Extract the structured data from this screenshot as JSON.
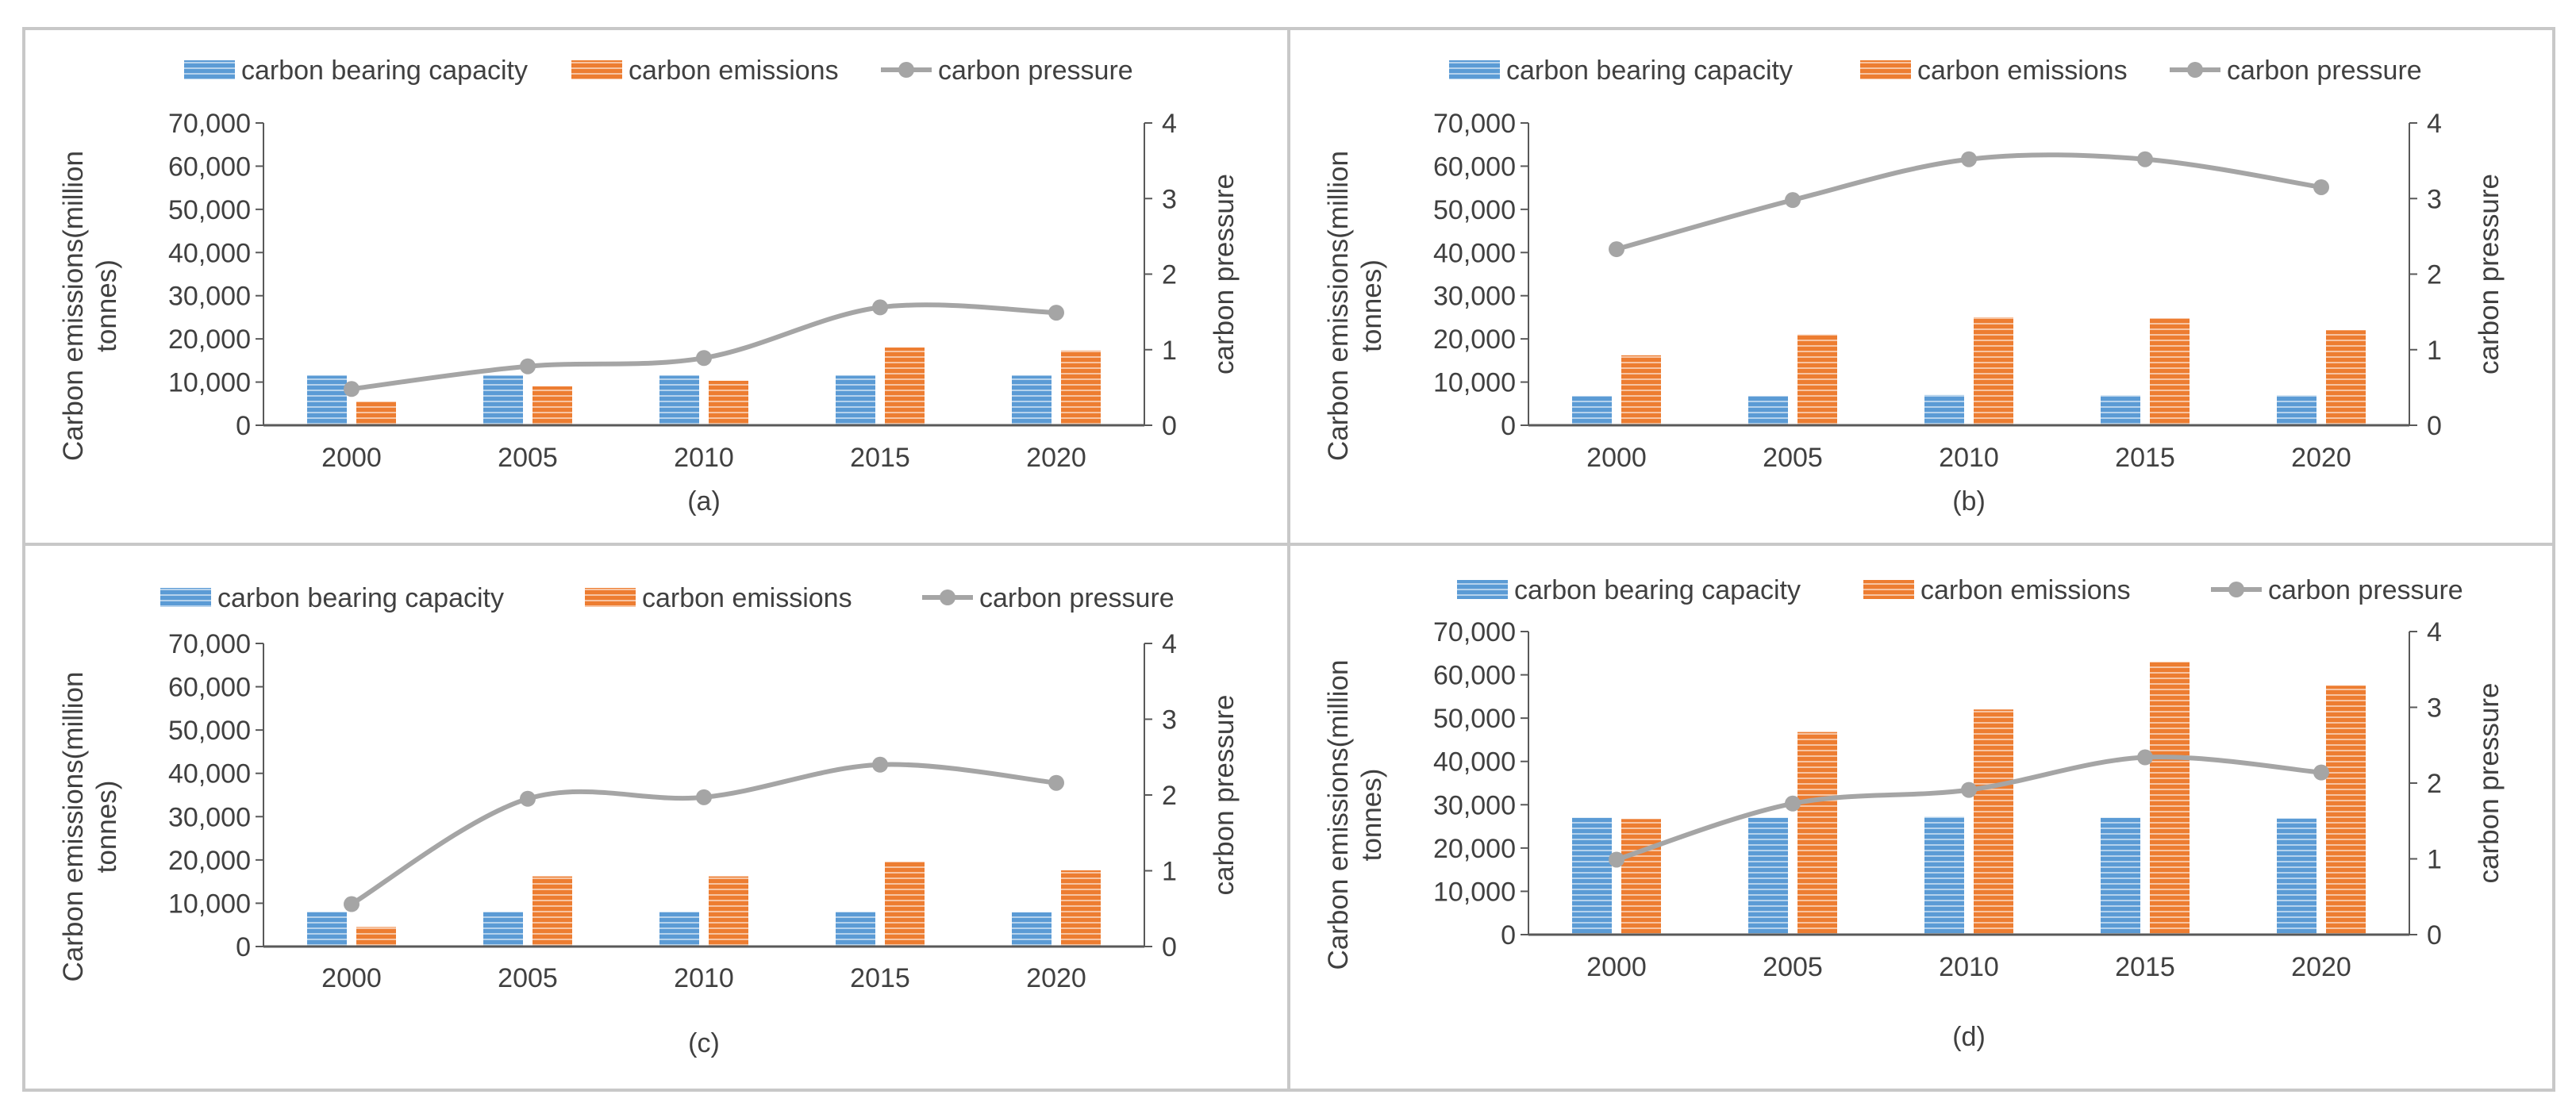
{
  "colors": {
    "capacity": "#5b9bd5",
    "emissions": "#ed7d31",
    "pressure": "#a5a5a5",
    "axis": "#595959",
    "text": "#404040",
    "frame": "#c8c8c8"
  },
  "chart_data": [
    {
      "type": "bar",
      "caption": "(a)",
      "categories": [
        "2000",
        "2005",
        "2010",
        "2015",
        "2020"
      ],
      "series": [
        {
          "name": "carbon bearing capacity",
          "kind": "bar",
          "axis": "left",
          "values": [
            11500,
            11500,
            11500,
            11500,
            11500
          ]
        },
        {
          "name": "carbon emissions",
          "kind": "bar",
          "axis": "left",
          "values": [
            5500,
            9000,
            10300,
            18000,
            17300
          ]
        },
        {
          "name": "carbon pressure",
          "kind": "line",
          "axis": "right",
          "values": [
            0.48,
            0.78,
            0.89,
            1.56,
            1.49
          ]
        }
      ],
      "ylabel": "Carbon emissions(million tonnes)",
      "ylabel_lines": [
        "Carbon emissions(million",
        "tonnes)"
      ],
      "y2label": "carbon pressure",
      "ylim": [
        0,
        70000
      ],
      "y2lim": [
        0,
        4
      ],
      "yticks": [
        0,
        10000,
        20000,
        30000,
        40000,
        50000,
        60000,
        70000
      ],
      "ytick_labels": [
        "0",
        "10,000",
        "20,000",
        "30,000",
        "40,000",
        "50,000",
        "60,000",
        "70,000"
      ],
      "y2ticks": [
        0,
        1,
        2,
        3,
        4
      ],
      "y2tick_labels": [
        "0",
        "1",
        "2",
        "3",
        "4"
      ],
      "legend": "top",
      "grid": false
    },
    {
      "type": "bar",
      "caption": "(b)",
      "categories": [
        "2000",
        "2005",
        "2010",
        "2015",
        "2020"
      ],
      "series": [
        {
          "name": "carbon bearing capacity",
          "kind": "bar",
          "axis": "left",
          "values": [
            6800,
            6800,
            7000,
            6900,
            6900
          ]
        },
        {
          "name": "carbon emissions",
          "kind": "bar",
          "axis": "left",
          "values": [
            16200,
            21000,
            25000,
            24800,
            22000
          ]
        },
        {
          "name": "carbon pressure",
          "kind": "line",
          "axis": "right",
          "values": [
            2.33,
            2.98,
            3.52,
            3.52,
            3.15
          ]
        }
      ],
      "ylabel": "Carbon emissions(million tonnes)",
      "ylabel_lines": [
        "Carbon emissions(million",
        "tonnes)"
      ],
      "y2label": "carbon pressure",
      "ylim": [
        0,
        70000
      ],
      "y2lim": [
        0,
        4
      ],
      "yticks": [
        0,
        10000,
        20000,
        30000,
        40000,
        50000,
        60000,
        70000
      ],
      "ytick_labels": [
        "0",
        "10,000",
        "20,000",
        "30,000",
        "40,000",
        "50,000",
        "60,000",
        "70,000"
      ],
      "y2ticks": [
        0,
        1,
        2,
        3,
        4
      ],
      "y2tick_labels": [
        "0",
        "1",
        "2",
        "3",
        "4"
      ],
      "legend": "top",
      "grid": false
    },
    {
      "type": "bar",
      "caption": "(c)",
      "categories": [
        "2000",
        "2005",
        "2010",
        "2015",
        "2020"
      ],
      "series": [
        {
          "name": "carbon bearing capacity",
          "kind": "bar",
          "axis": "left",
          "values": [
            8000,
            8000,
            8000,
            8000,
            7900
          ]
        },
        {
          "name": "carbon emissions",
          "kind": "bar",
          "axis": "left",
          "values": [
            4500,
            16200,
            16200,
            19600,
            17600
          ]
        },
        {
          "name": "carbon pressure",
          "kind": "line",
          "axis": "right",
          "values": [
            0.56,
            1.95,
            1.97,
            2.4,
            2.16
          ]
        }
      ],
      "ylabel": "Carbon emissions(million tonnes)",
      "ylabel_lines": [
        "Carbon emissions(million",
        "tonnes)"
      ],
      "y2label": "carbon pressure",
      "ylim": [
        0,
        70000
      ],
      "y2lim": [
        0,
        4
      ],
      "yticks": [
        0,
        10000,
        20000,
        30000,
        40000,
        50000,
        60000,
        70000
      ],
      "ytick_labels": [
        "0",
        "10,000",
        "20,000",
        "30,000",
        "40,000",
        "50,000",
        "60,000",
        "70,000"
      ],
      "y2ticks": [
        0,
        1,
        2,
        3,
        4
      ],
      "y2tick_labels": [
        "0",
        "1",
        "2",
        "3",
        "4"
      ],
      "legend": "top",
      "grid": false
    },
    {
      "type": "bar",
      "caption": "(d)",
      "categories": [
        "2000",
        "2005",
        "2010",
        "2015",
        "2020"
      ],
      "series": [
        {
          "name": "carbon bearing capacity",
          "kind": "bar",
          "axis": "left",
          "values": [
            27000,
            27000,
            27200,
            27000,
            26800
          ]
        },
        {
          "name": "carbon emissions",
          "kind": "bar",
          "axis": "left",
          "values": [
            26700,
            46800,
            52000,
            63000,
            57500
          ]
        },
        {
          "name": "carbon pressure",
          "kind": "line",
          "axis": "right",
          "values": [
            0.99,
            1.73,
            1.91,
            2.34,
            2.14
          ]
        }
      ],
      "ylabel": "Carbon emissions(million tonnes)",
      "ylabel_lines": [
        "Carbon emissions(million",
        "tonnes)"
      ],
      "y2label": "carbon pressure",
      "ylim": [
        0,
        70000
      ],
      "y2lim": [
        0,
        4
      ],
      "yticks": [
        0,
        10000,
        20000,
        30000,
        40000,
        50000,
        60000,
        70000
      ],
      "ytick_labels": [
        "0",
        "10,000",
        "20,000",
        "30,000",
        "40,000",
        "50,000",
        "60,000",
        "70,000"
      ],
      "y2ticks": [
        0,
        1,
        2,
        3,
        4
      ],
      "y2tick_labels": [
        "0",
        "1",
        "2",
        "3",
        "4"
      ],
      "legend": "top",
      "grid": false
    }
  ]
}
